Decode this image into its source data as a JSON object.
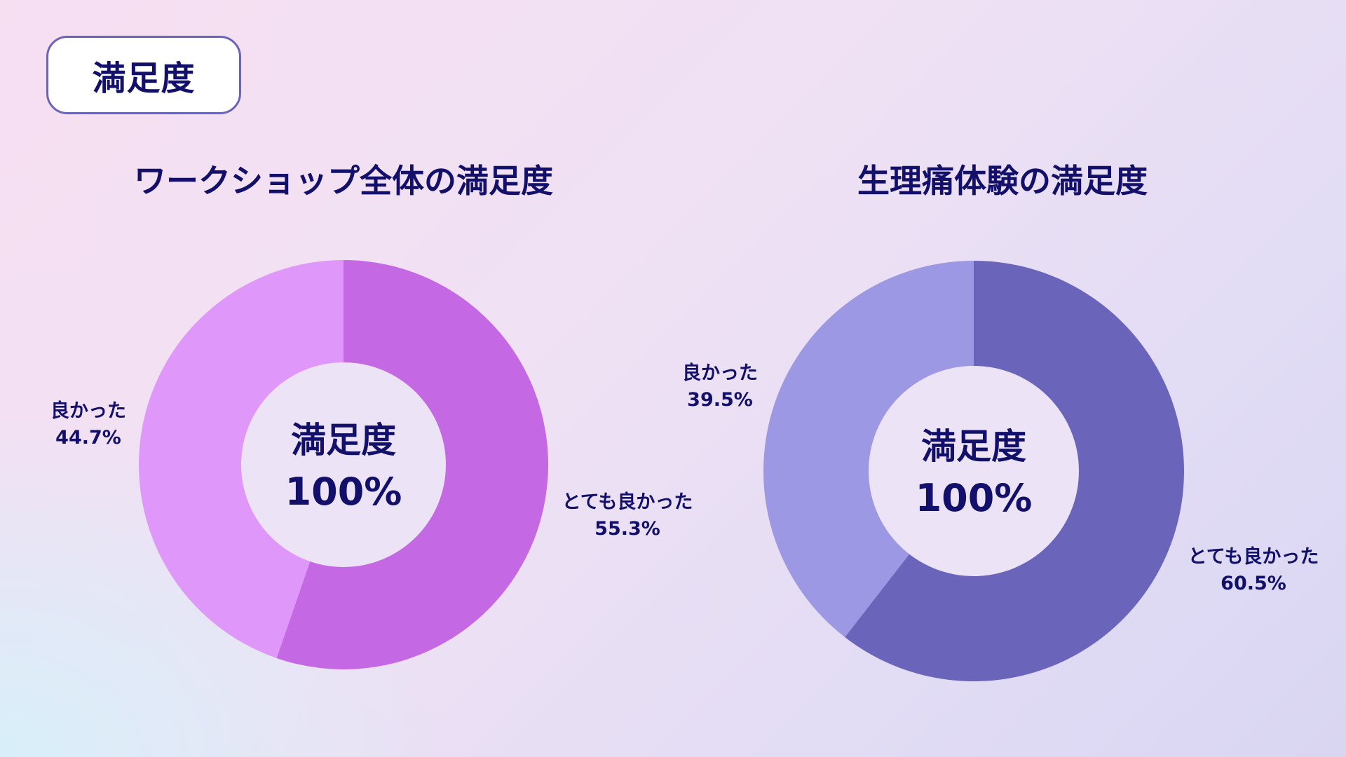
{
  "section_label": "満足度",
  "chart_data": [
    {
      "type": "pie",
      "title": "ワークショップ全体の満足度",
      "center_label": "満足度",
      "center_value": "100%",
      "slices": [
        {
          "label": "とても良かった",
          "value": 55.3,
          "value_label": "55.3%",
          "color": "#c568e3"
        },
        {
          "label": "良かった",
          "value": 44.7,
          "value_label": "44.7%",
          "color": "#df97fa"
        }
      ]
    },
    {
      "type": "pie",
      "title": "生理痛体験の満足度",
      "center_label": "満足度",
      "center_value": "100%",
      "slices": [
        {
          "label": "とても良かった",
          "value": 60.5,
          "value_label": "60.5%",
          "color": "#6a64bb"
        },
        {
          "label": "良かった",
          "value": 39.5,
          "value_label": "39.5%",
          "color": "#9d98e3"
        }
      ]
    }
  ],
  "colors": {
    "text": "#12106a",
    "hole": "#ece4f6",
    "badge_border": "#6c64b8"
  }
}
